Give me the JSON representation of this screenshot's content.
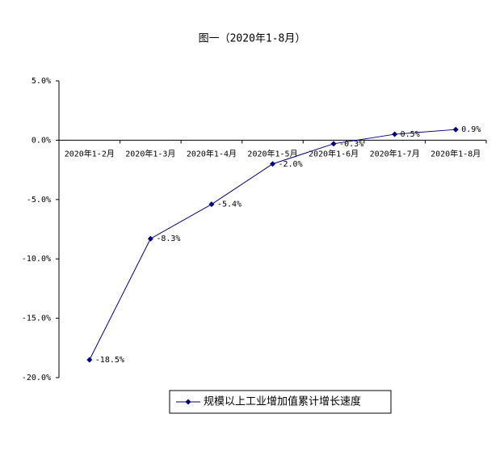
{
  "chart_data": {
    "type": "line",
    "title": "图一（2020年1-8月）",
    "categories": [
      "2020年1-2月",
      "2020年1-3月",
      "2020年1-4月",
      "2020年1-5月",
      "2020年1-6月",
      "2020年1-7月",
      "2020年1-8月"
    ],
    "series": [
      {
        "name": "规模以上工业增加值累计增长速度",
        "color": "#000080",
        "values": [
          -18.5,
          -8.3,
          -5.4,
          -2.0,
          -0.3,
          0.5,
          0.9
        ],
        "value_labels": [
          "-18.5%",
          "-8.3%",
          "-5.4%",
          "-2.0%",
          "-0.3%",
          "0.5%",
          "0.9%"
        ]
      }
    ],
    "ylim": [
      -20,
      5
    ],
    "yticks": [
      {
        "value": -20,
        "label": "-20.0%"
      },
      {
        "value": -15,
        "label": "-15.0%"
      },
      {
        "value": -10,
        "label": "-10.0%"
      },
      {
        "value": -5,
        "label": "-5.0%"
      },
      {
        "value": 0,
        "label": "0.0%"
      },
      {
        "value": 5,
        "label": "5.0%"
      }
    ],
    "grid": false,
    "legend": "bottom"
  }
}
